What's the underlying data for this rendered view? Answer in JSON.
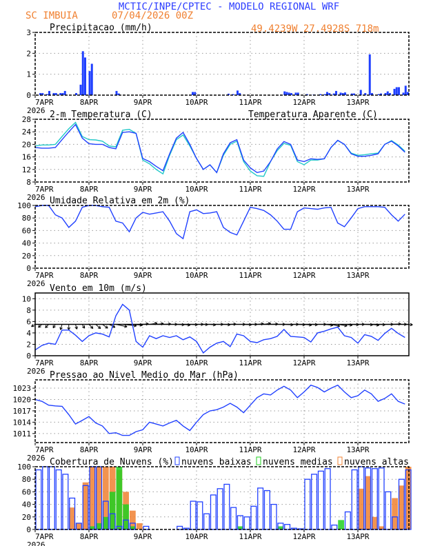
{
  "header": {
    "title": "MCTIC/INPE/CPTEC - MODELO REGIONAL WRF",
    "station": "SC IMBUIA",
    "run": "07/04/2026 00Z",
    "location": "49.4239W 27.4928S 718m"
  },
  "colors": {
    "title": "#2b3cff",
    "orange": "#f08030",
    "blue": "#2040ff",
    "cyan": "#20c8c8",
    "green": "#20d020",
    "grid": "#999999"
  },
  "chart_data": [
    {
      "type": "bar",
      "id": "precip",
      "title": "Precipitacao (mm/h)",
      "x_unit": "hours since 7APR 00Z (hourly)",
      "xticks": [
        "7APR",
        "8APR",
        "9APR",
        "10APR",
        "11APR",
        "12APR",
        "13APR"
      ],
      "xyear": "2026",
      "ylim": [
        0,
        3
      ],
      "yticks": [
        0,
        1,
        2,
        3
      ],
      "grid": true,
      "points": [
        [
          2,
          0.1
        ],
        [
          3,
          0.1
        ],
        [
          5,
          0.05
        ],
        [
          6,
          0.2
        ],
        [
          8,
          0.1
        ],
        [
          9,
          0.1
        ],
        [
          11,
          0.1
        ],
        [
          12,
          0.1
        ],
        [
          13,
          0.2
        ],
        [
          18,
          0.1
        ],
        [
          20,
          0.5
        ],
        [
          21,
          2.1
        ],
        [
          22,
          1.8
        ],
        [
          24,
          1.15
        ],
        [
          25,
          1.5
        ],
        [
          36,
          0.2
        ],
        [
          37,
          0.08
        ],
        [
          70,
          0.15
        ],
        [
          71,
          0.15
        ],
        [
          86,
          0.07
        ],
        [
          88,
          0.05
        ],
        [
          90,
          0.22
        ],
        [
          91,
          0.1
        ],
        [
          111,
          0.18
        ],
        [
          112,
          0.15
        ],
        [
          113,
          0.12
        ],
        [
          114,
          0.1
        ],
        [
          116,
          0.12
        ],
        [
          117,
          0.12
        ],
        [
          121,
          0.05
        ],
        [
          124,
          0.03
        ],
        [
          127,
          0.05
        ],
        [
          129,
          0.05
        ],
        [
          130,
          0.15
        ],
        [
          131,
          0.1
        ],
        [
          133,
          0.08
        ],
        [
          134,
          0.2
        ],
        [
          136,
          0.12
        ],
        [
          137,
          0.1
        ],
        [
          138,
          0.13
        ],
        [
          141,
          0.08
        ],
        [
          142,
          0.08
        ],
        [
          145,
          0.25
        ],
        [
          147,
          0.1
        ],
        [
          149,
          1.95
        ],
        [
          150,
          0.1
        ],
        [
          153,
          0.05
        ],
        [
          154,
          0.08
        ],
        [
          156,
          0.1
        ],
        [
          157,
          0.18
        ],
        [
          158,
          0.1
        ],
        [
          160,
          0.3
        ],
        [
          161,
          0.38
        ],
        [
          162,
          0.38
        ],
        [
          164,
          0.12
        ],
        [
          165,
          0.45
        ],
        [
          166,
          0.15
        ]
      ]
    },
    {
      "type": "line",
      "id": "temp",
      "title": "2-m Temperatura (C)",
      "x_step_hours": 3,
      "ylim": [
        8,
        28
      ],
      "yticks": [
        8,
        12,
        16,
        20,
        24,
        28
      ],
      "grid": true,
      "xticks": [
        "7APR",
        "8APR",
        "9APR",
        "10APR",
        "11APR",
        "12APR",
        "13APR"
      ],
      "xyear": "2026",
      "series": [
        {
          "name": "2-m Temperatura (C)",
          "color": "#2040ff",
          "values": [
            19,
            18.8,
            18.8,
            19,
            21.5,
            24,
            26.3,
            22,
            20.2,
            20,
            20,
            19,
            18.6,
            23.8,
            24,
            23.5,
            15.5,
            14.5,
            13,
            11.6,
            17,
            22,
            23.8,
            20,
            15.5,
            12,
            13.5,
            11,
            17,
            20.5,
            21.5,
            15,
            12.5,
            11,
            11.5,
            14.5,
            18.5,
            20.9,
            20,
            15,
            14.5,
            15.4,
            15.2,
            15.4,
            19,
            21.3,
            20,
            17,
            16.2,
            16.2,
            16.5,
            17,
            20,
            21,
            19.5,
            17.5
          ]
        },
        {
          "name": "Temperatura Aparente (C)",
          "color": "#20c8c8",
          "values": [
            19.5,
            19.8,
            19.8,
            20,
            22.5,
            25,
            27,
            22.5,
            21.5,
            21.4,
            21,
            19.5,
            19.2,
            24.5,
            24.8,
            23.5,
            15,
            13.8,
            12,
            10.6,
            16.5,
            21.5,
            23,
            19.5,
            15.5,
            12,
            13.5,
            11,
            16.5,
            20,
            21,
            14.5,
            11.5,
            10,
            9.8,
            14.5,
            18,
            20.3,
            19.7,
            14.5,
            13.5,
            15,
            15,
            15.4,
            19,
            21.2,
            20,
            17.2,
            16.5,
            16.7,
            17,
            17.2,
            20,
            21.2,
            19.8,
            17.8
          ]
        }
      ]
    },
    {
      "type": "line",
      "id": "rh",
      "title": "Umidade Relativa em 2m (%)",
      "x_step_hours": 3,
      "ylim": [
        0,
        100
      ],
      "yticks": [
        0,
        20,
        40,
        60,
        80,
        100
      ],
      "grid": true,
      "xticks": [
        "7APR",
        "8APR",
        "9APR",
        "10APR",
        "11APR",
        "12APR",
        "13APR"
      ],
      "xyear": "2026",
      "series": [
        {
          "color": "#2040ff",
          "values": [
            98,
            100,
            100,
            85,
            80,
            65,
            75,
            97,
            100,
            100,
            98,
            97,
            75,
            72,
            58,
            80,
            89,
            86,
            88,
            90,
            75,
            55,
            47,
            90,
            93,
            87,
            88,
            90,
            65,
            57,
            53,
            75,
            97,
            95,
            92,
            85,
            75,
            62,
            62,
            90,
            96,
            95,
            94,
            96,
            97,
            72,
            66,
            80,
            95,
            98,
            98,
            98,
            97,
            85,
            75,
            86
          ]
        }
      ]
    },
    {
      "type": "line",
      "id": "wind",
      "title": "Vento em 10m (m/s)",
      "x_step_hours": 3,
      "ylim": [
        0,
        11
      ],
      "yticks": [
        0,
        2,
        4,
        6,
        8,
        10
      ],
      "grid": true,
      "xticks": [
        "7APR",
        "8APR",
        "9APR",
        "10APR",
        "11APR",
        "12APR",
        "13APR"
      ],
      "xyear": "2026",
      "series": [
        {
          "color": "#2040ff",
          "values": [
            1,
            1.8,
            2.2,
            2,
            4.5,
            4.5,
            3.6,
            2.5,
            3.5,
            4,
            3.8,
            3.3,
            7,
            9,
            8,
            2.5,
            1.5,
            3.5,
            3,
            3.5,
            3.2,
            3.5,
            2.8,
            3.3,
            2.5,
            0.5,
            1.5,
            2.2,
            2.5,
            1.6,
            3.8,
            3.5,
            2.5,
            2.3,
            2.8,
            3,
            3.4,
            4.6,
            3.4,
            3.3,
            3.2,
            2.4,
            4,
            4.3,
            4.7,
            5,
            3.5,
            3.2,
            2.2,
            3.7,
            3.4,
            2.7,
            3.9,
            4.8,
            3.9,
            3.2
          ]
        }
      ],
      "wind_vectors": {
        "color": "#000000",
        "toward_deg": [
          225,
          215,
          210,
          200,
          190,
          180,
          170,
          160,
          150,
          145,
          140,
          130,
          110,
          100,
          95,
          100,
          80,
          75,
          80,
          85,
          90,
          95,
          100,
          95,
          90,
          95,
          100,
          90,
          95,
          85,
          90,
          95,
          90,
          80,
          75,
          85,
          90,
          95,
          90,
          95,
          100,
          95,
          90,
          100,
          110,
          105,
          100,
          95,
          90,
          95,
          100,
          95,
          90,
          85,
          90,
          95
        ]
      }
    },
    {
      "type": "line",
      "id": "press",
      "title": "Pressao ao Nivel Medio do Mar (hPa)",
      "x_step_hours": 3,
      "ylim": [
        1008.6,
        1025.2
      ],
      "yticks": [
        1011,
        1014,
        1017,
        1020,
        1023
      ],
      "grid": true,
      "xticks": [
        "7APR",
        "8APR",
        "9APR",
        "10APR",
        "11APR",
        "12APR",
        "13APR"
      ],
      "xyear": "2026",
      "series": [
        {
          "color": "#2040ff",
          "values": [
            1020,
            1019.5,
            1018.5,
            1018.3,
            1018.2,
            1016,
            1013.5,
            1014.5,
            1015.5,
            1013.8,
            1013,
            1011,
            1011.2,
            1010.5,
            1010.5,
            1011.5,
            1012,
            1014,
            1013.5,
            1013,
            1013.8,
            1014.5,
            1013,
            1011.8,
            1014,
            1016,
            1017,
            1017.3,
            1018,
            1019,
            1018,
            1016.5,
            1018.5,
            1020.5,
            1021.5,
            1021.2,
            1022.5,
            1023.5,
            1022.5,
            1020.5,
            1022,
            1023.8,
            1023.2,
            1022,
            1023,
            1023.8,
            1022,
            1020.5,
            1021,
            1022.5,
            1021.5,
            1019.5,
            1020.3,
            1021.5,
            1019.5,
            1018.8
          ]
        }
      ]
    },
    {
      "type": "bar",
      "id": "cloud",
      "title": "Cobertura de Nuvens (%)",
      "x_step_hours": 3,
      "ylim": [
        0,
        100
      ],
      "yticks": [
        0,
        20,
        40,
        60,
        80,
        100
      ],
      "grid": true,
      "xticks": [
        "7APR",
        "8APR",
        "9APR",
        "10APR",
        "11APR",
        "12APR",
        "13APR"
      ],
      "xyear": "2026",
      "legend": "top",
      "series": [
        {
          "name": "nuvens altas",
          "color": "#f08030",
          "style": "filled",
          "values": [
            0,
            0,
            0,
            0,
            0,
            35,
            10,
            75,
            100,
            100,
            100,
            100,
            95,
            60,
            30,
            10,
            0,
            0,
            0,
            0,
            0,
            0,
            0,
            0,
            0,
            0,
            0,
            0,
            0,
            0,
            0,
            0,
            0,
            0,
            0,
            0,
            0,
            0,
            0,
            0,
            0,
            0,
            0,
            0,
            0,
            0,
            0,
            0,
            65,
            85,
            20,
            5,
            0,
            50,
            70,
            100
          ]
        },
        {
          "name": "nuvens medias",
          "color": "#20d020",
          "style": "filled",
          "values": [
            0,
            0,
            0,
            0,
            0,
            0,
            0,
            0,
            5,
            10,
            20,
            60,
            100,
            40,
            5,
            0,
            0,
            0,
            0,
            0,
            0,
            0,
            0,
            0,
            0,
            0,
            0,
            0,
            0,
            0,
            5,
            0,
            0,
            0,
            0,
            0,
            5,
            0,
            0,
            0,
            0,
            0,
            0,
            0,
            0,
            15,
            0,
            0,
            0,
            0,
            0,
            0,
            0,
            0,
            0,
            0
          ]
        },
        {
          "name": "nuvens baixas",
          "color": "#2040ff",
          "style": "outline",
          "values": [
            95,
            100,
            100,
            95,
            88,
            50,
            10,
            70,
            100,
            100,
            45,
            25,
            5,
            15,
            10,
            0,
            5,
            0,
            0,
            0,
            0,
            5,
            2,
            45,
            44,
            25,
            55,
            65,
            72,
            35,
            22,
            20,
            37,
            66,
            62,
            40,
            10,
            8,
            2,
            1,
            80,
            88,
            93,
            97,
            7,
            0,
            28,
            95,
            100,
            98,
            97,
            98,
            60,
            20,
            80,
            95
          ]
        }
      ]
    }
  ]
}
